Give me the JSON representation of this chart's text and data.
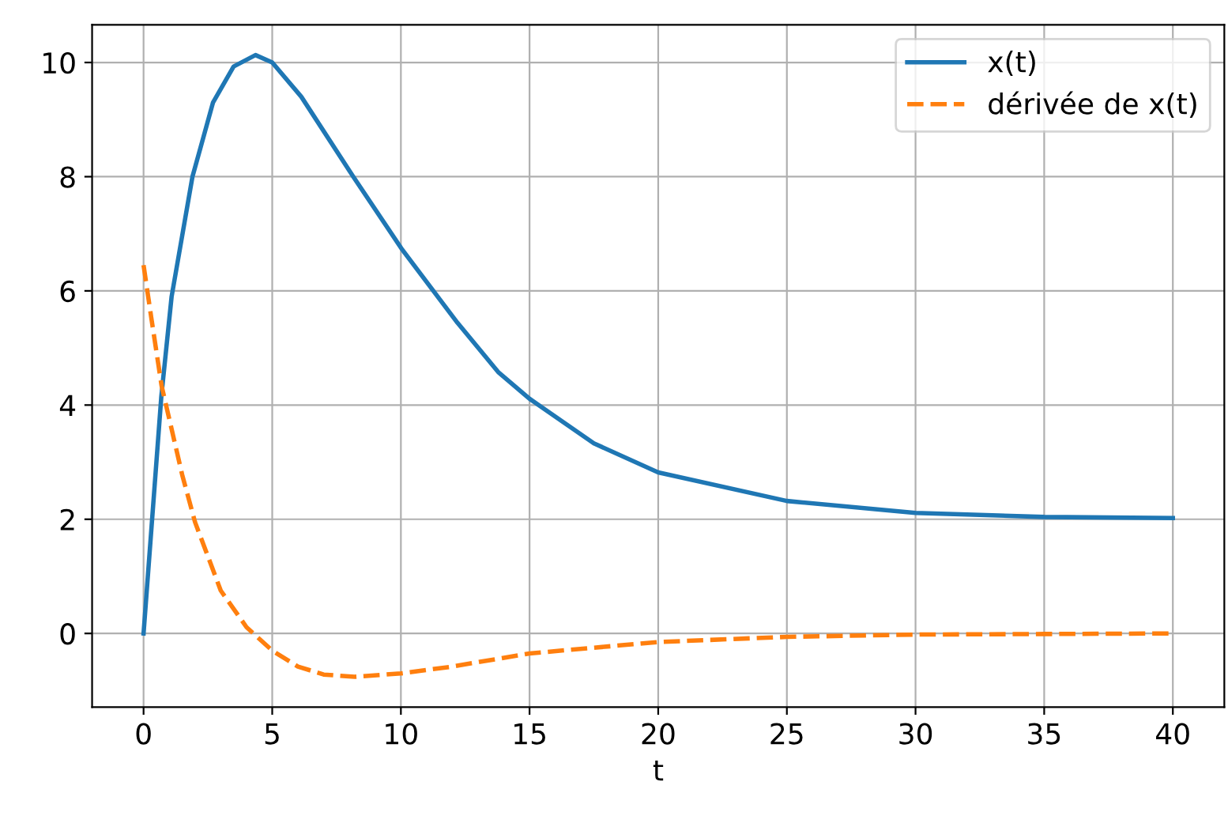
{
  "chart_data": {
    "type": "line",
    "xlabel": "t",
    "xlim": [
      -2,
      42
    ],
    "ylim": [
      -1.29,
      10.66
    ],
    "xticks": [
      0,
      5,
      10,
      15,
      20,
      25,
      30,
      35,
      40
    ],
    "yticks": [
      0,
      2,
      4,
      6,
      8,
      10
    ],
    "grid": true,
    "legend": "top right",
    "series": [
      {
        "name": "x(t)",
        "color": "#1f77b4",
        "line_style": "solid",
        "x": [
          0,
          0.69,
          1.09,
          1.9,
          2.7,
          3.5,
          4.35,
          5,
          6.13,
          8.15,
          10.04,
          12.2,
          13.8,
          15,
          17.5,
          20,
          25,
          30,
          35,
          40
        ],
        "values": [
          0,
          4.15,
          5.9,
          8.0,
          9.3,
          9.93,
          10.13,
          10.0,
          9.4,
          8.0,
          6.73,
          5.44,
          4.57,
          4.11,
          3.33,
          2.82,
          2.32,
          2.11,
          2.04,
          2.02
        ]
      },
      {
        "name": "dérivée de x(t)",
        "color": "#ff7f0e",
        "line_style": "dashed",
        "x": [
          0,
          0.3,
          0.7,
          1.5,
          2,
          3,
          4,
          5,
          6,
          7,
          8.2,
          10,
          12,
          15,
          20,
          25,
          30,
          35,
          40
        ],
        "values": [
          6.45,
          5.53,
          4.34,
          2.78,
          1.95,
          0.75,
          0.11,
          -0.3,
          -0.58,
          -0.72,
          -0.76,
          -0.7,
          -0.58,
          -0.35,
          -0.15,
          -0.06,
          -0.02,
          -0.01,
          0
        ]
      }
    ]
  }
}
